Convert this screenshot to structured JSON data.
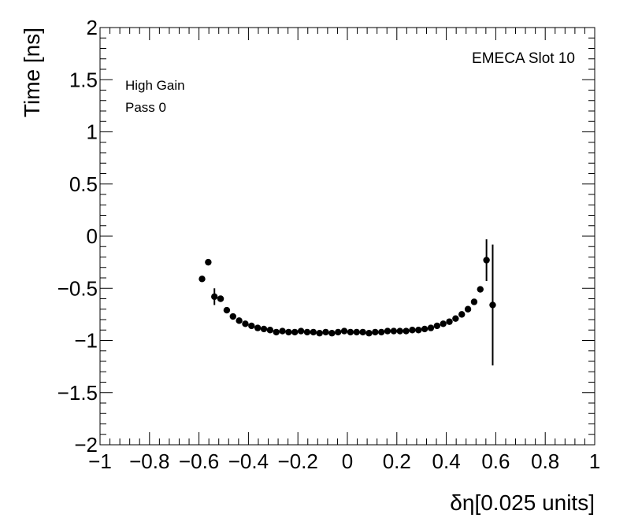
{
  "chart_data": {
    "type": "scatter",
    "xlabel": "δη[0.025 units]",
    "ylabel": "Time [ns]",
    "xlim": [
      -1,
      1
    ],
    "ylim": [
      -2,
      2
    ],
    "x_ticks": [
      "−1",
      "−0.8",
      "−0.6",
      "−0.4",
      "−0.2",
      "0",
      "0.2",
      "0.4",
      "0.6",
      "0.8",
      "1"
    ],
    "y_ticks": [
      "−2",
      "−1.5",
      "−1",
      "−0.5",
      "0",
      "0.5",
      "1",
      "1.5",
      "2"
    ],
    "annotations": [
      "High Gain",
      "Pass 0",
      "EMECA Slot 10"
    ],
    "grid": false,
    "series": [
      {
        "marker_color": "#000000",
        "points": [
          {
            "x": -0.5875,
            "y": -0.41
          },
          {
            "x": -0.5625,
            "y": -0.25
          },
          {
            "x": -0.5375,
            "y": -0.58,
            "err": 0.08
          },
          {
            "x": -0.5125,
            "y": -0.6
          },
          {
            "x": -0.4875,
            "y": -0.71
          },
          {
            "x": -0.4625,
            "y": -0.77
          },
          {
            "x": -0.4375,
            "y": -0.81
          },
          {
            "x": -0.4125,
            "y": -0.84
          },
          {
            "x": -0.3875,
            "y": -0.86
          },
          {
            "x": -0.3625,
            "y": -0.88
          },
          {
            "x": -0.3375,
            "y": -0.89
          },
          {
            "x": -0.3125,
            "y": -0.9
          },
          {
            "x": -0.2875,
            "y": -0.92
          },
          {
            "x": -0.2625,
            "y": -0.91
          },
          {
            "x": -0.2375,
            "y": -0.92
          },
          {
            "x": -0.2125,
            "y": -0.92
          },
          {
            "x": -0.1875,
            "y": -0.91
          },
          {
            "x": -0.1625,
            "y": -0.92
          },
          {
            "x": -0.1375,
            "y": -0.92
          },
          {
            "x": -0.1125,
            "y": -0.93
          },
          {
            "x": -0.0875,
            "y": -0.92
          },
          {
            "x": -0.0625,
            "y": -0.93
          },
          {
            "x": -0.0375,
            "y": -0.92
          },
          {
            "x": -0.0125,
            "y": -0.91
          },
          {
            "x": 0.0125,
            "y": -0.92
          },
          {
            "x": 0.0375,
            "y": -0.92
          },
          {
            "x": 0.0625,
            "y": -0.92
          },
          {
            "x": 0.0875,
            "y": -0.93
          },
          {
            "x": 0.1125,
            "y": -0.92
          },
          {
            "x": 0.1375,
            "y": -0.92
          },
          {
            "x": 0.1625,
            "y": -0.91
          },
          {
            "x": 0.1875,
            "y": -0.91
          },
          {
            "x": 0.2125,
            "y": -0.91
          },
          {
            "x": 0.2375,
            "y": -0.91
          },
          {
            "x": 0.2625,
            "y": -0.9
          },
          {
            "x": 0.2875,
            "y": -0.9
          },
          {
            "x": 0.3125,
            "y": -0.89
          },
          {
            "x": 0.3375,
            "y": -0.88
          },
          {
            "x": 0.3625,
            "y": -0.86
          },
          {
            "x": 0.3875,
            "y": -0.84
          },
          {
            "x": 0.4125,
            "y": -0.82
          },
          {
            "x": 0.4375,
            "y": -0.79
          },
          {
            "x": 0.4625,
            "y": -0.75
          },
          {
            "x": 0.4875,
            "y": -0.7
          },
          {
            "x": 0.5125,
            "y": -0.63
          },
          {
            "x": 0.5375,
            "y": -0.51
          },
          {
            "x": 0.5625,
            "y": -0.23,
            "err": 0.2
          },
          {
            "x": 0.5875,
            "y": -0.66,
            "err": 0.58
          }
        ]
      }
    ]
  }
}
